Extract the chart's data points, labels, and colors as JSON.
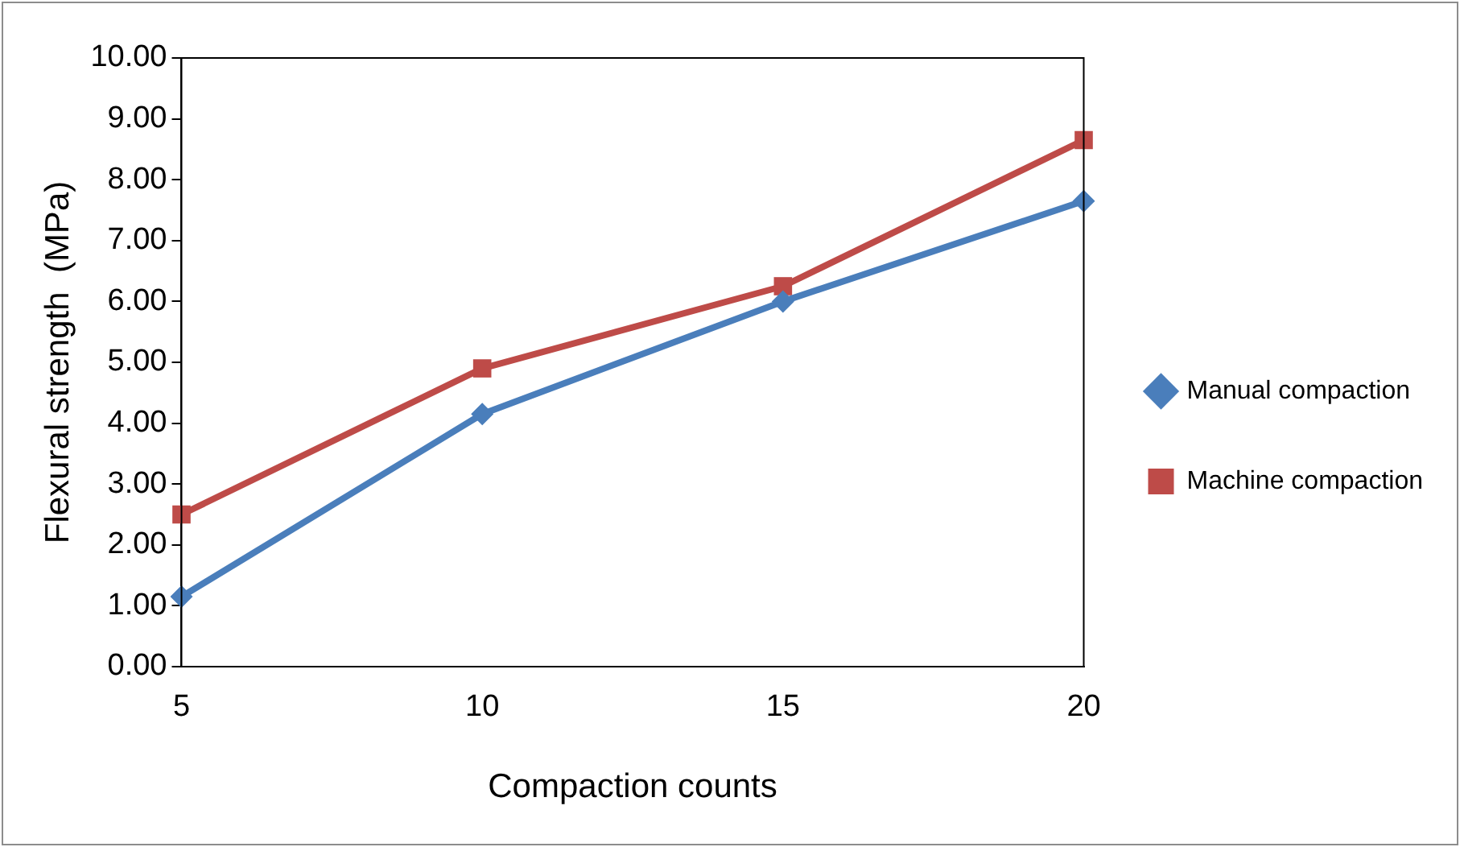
{
  "chart_data": {
    "type": "line",
    "xlabel": "Compaction counts",
    "ylabel": "Flexural strength  (MPa)",
    "categories": [
      "5",
      "10",
      "15",
      "20"
    ],
    "series": [
      {
        "name": "Manual compaction",
        "color": "#4a7ebb",
        "marker": "diamond",
        "values": [
          1.15,
          4.15,
          6.0,
          7.65
        ]
      },
      {
        "name": "Machine compaction",
        "color": "#be4b48",
        "marker": "square",
        "values": [
          2.5,
          4.9,
          6.25,
          8.65
        ]
      }
    ],
    "ylim": [
      0,
      10
    ],
    "yticks": [
      {
        "value": 0,
        "label": "0.00"
      },
      {
        "value": 1,
        "label": "1.00"
      },
      {
        "value": 2,
        "label": "2.00"
      },
      {
        "value": 3,
        "label": "3.00"
      },
      {
        "value": 4,
        "label": "4.00"
      },
      {
        "value": 5,
        "label": "5.00"
      },
      {
        "value": 6,
        "label": "6.00"
      },
      {
        "value": 7,
        "label": "7.00"
      },
      {
        "value": 8,
        "label": "8.00"
      },
      {
        "value": 9,
        "label": "9.00"
      },
      {
        "value": 10,
        "label": "10.00"
      }
    ],
    "grid": false,
    "legend": "right",
    "line_style": "solid"
  }
}
